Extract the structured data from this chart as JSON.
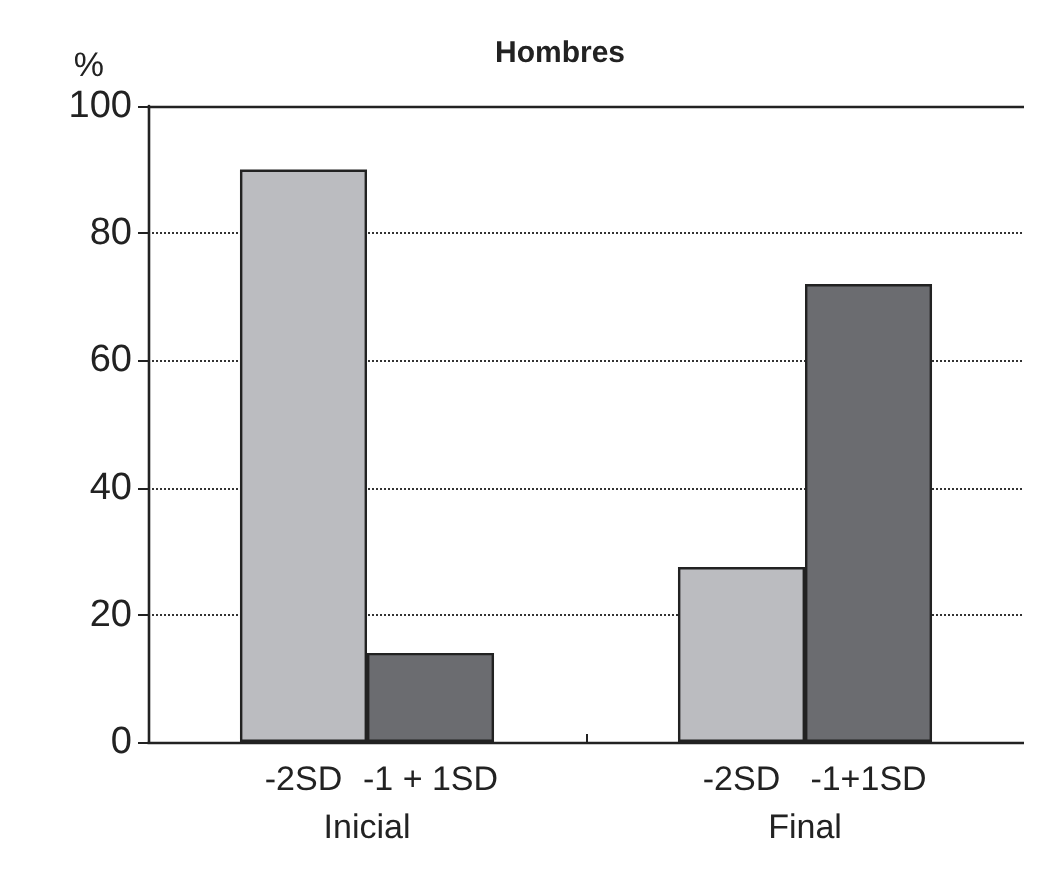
{
  "chart_data": {
    "type": "bar",
    "title": "Hombres",
    "ylabel": "%",
    "categories": [
      "-2SD",
      "-1 + 1SD",
      "-2SD",
      "-1+1SD"
    ],
    "values": [
      90,
      14,
      27.5,
      72
    ],
    "colors": [
      "#bbbcc0",
      "#6b6c70",
      "#bbbcc0",
      "#6b6c70"
    ],
    "annotations": [
      "Inicial",
      "Final"
    ],
    "ylim": [
      0,
      100
    ],
    "yticks": [
      0,
      20,
      40,
      60,
      80,
      100
    ],
    "grid": "y"
  }
}
